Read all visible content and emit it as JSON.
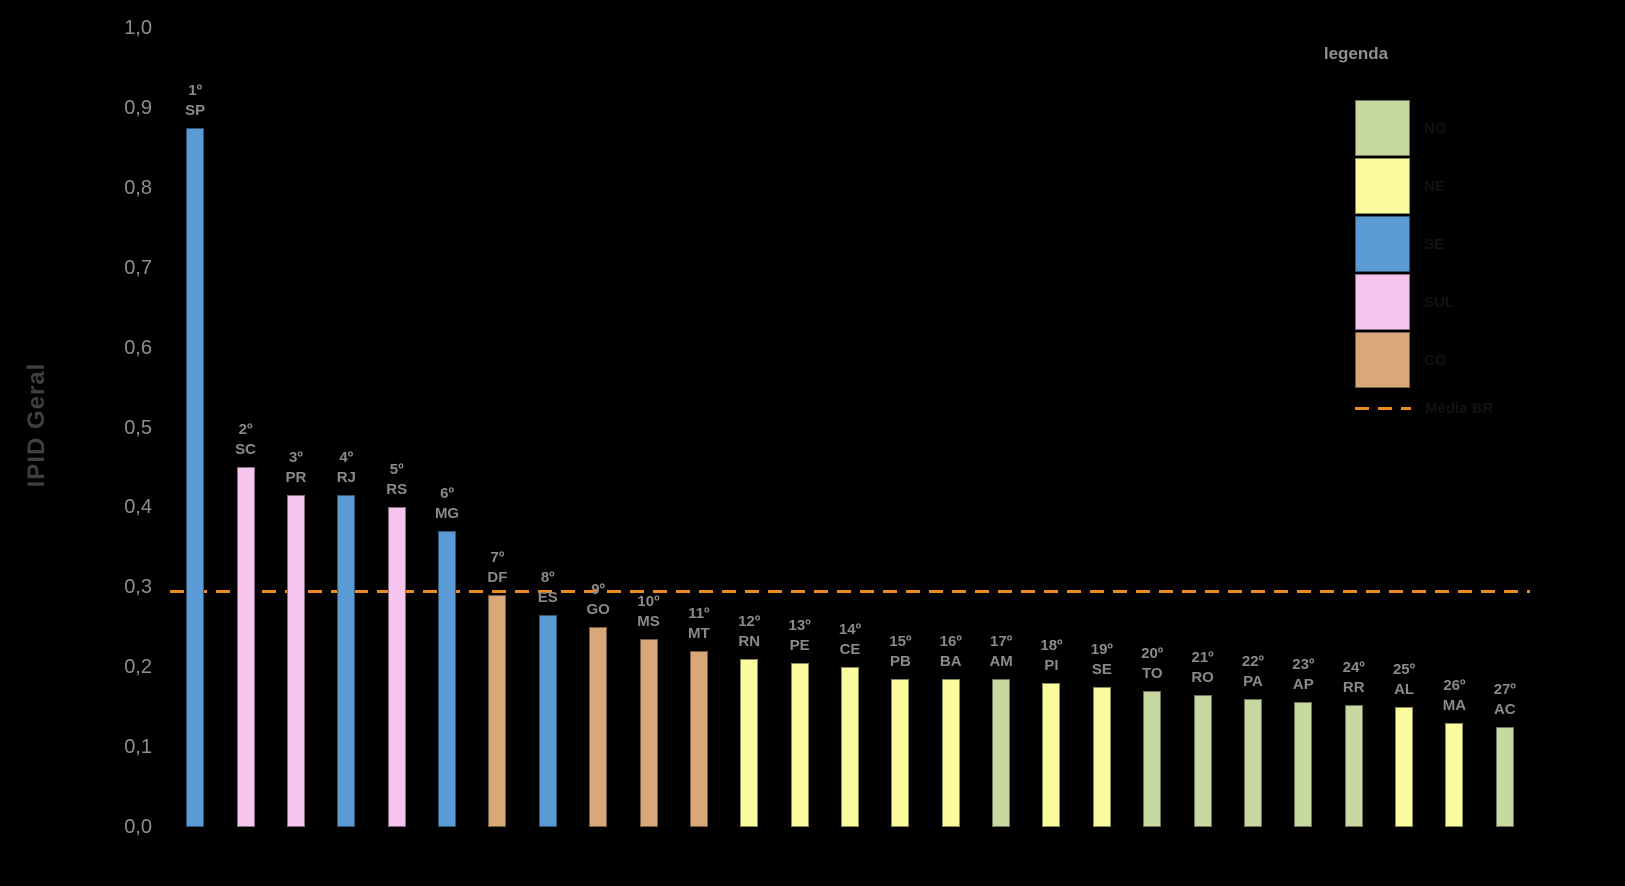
{
  "page": {
    "background": "#000000"
  },
  "y_axis": {
    "title": "IPID Geral",
    "ticks": [
      "1,0",
      "0,9",
      "0,8",
      "0,7",
      "0,6",
      "0,5",
      "0,4",
      "0,3",
      "0,2",
      "0,1",
      "0,0"
    ]
  },
  "legend": {
    "title": "legenda",
    "items": [
      {
        "label": "NO",
        "color": "#C7D8A0"
      },
      {
        "label": "NE",
        "color": "#FBFB9E"
      },
      {
        "label": "SE",
        "color": "#5B9BD5"
      },
      {
        "label": "SUL",
        "color": "#F5C5ED"
      },
      {
        "label": "CO",
        "color": "#D8A878"
      }
    ],
    "line_item": {
      "label": "Média BR",
      "color": "#ED8B1E"
    }
  },
  "chart_data": {
    "type": "bar",
    "title": "",
    "xlabel": "",
    "ylabel": "IPID Geral",
    "ylim": [
      0,
      1
    ],
    "grid": false,
    "legend_position": "top-right",
    "region_colors": {
      "NO": "#C7D8A0",
      "NE": "#FBFB9E",
      "SE": "#5B9BD5",
      "SUL": "#F5C5ED",
      "CO": "#D8A878"
    },
    "reference_line": {
      "label": "Média BR",
      "value": 0.295,
      "color": "#ED8B1E",
      "style": "dashed"
    },
    "bars": [
      {
        "rank": "1º",
        "state": "SP",
        "region": "SE",
        "value": 0.875
      },
      {
        "rank": "2º",
        "state": "SC",
        "region": "SUL",
        "value": 0.45
      },
      {
        "rank": "3º",
        "state": "PR",
        "region": "SUL",
        "value": 0.415
      },
      {
        "rank": "4º",
        "state": "RJ",
        "region": "SE",
        "value": 0.415
      },
      {
        "rank": "5º",
        "state": "RS",
        "region": "SUL",
        "value": 0.4
      },
      {
        "rank": "6º",
        "state": "MG",
        "region": "SE",
        "value": 0.37
      },
      {
        "rank": "7º",
        "state": "DF",
        "region": "CO",
        "value": 0.29
      },
      {
        "rank": "8º",
        "state": "ES",
        "region": "SE",
        "value": 0.265
      },
      {
        "rank": "9º",
        "state": "GO",
        "region": "CO",
        "value": 0.25
      },
      {
        "rank": "10º",
        "state": "MS",
        "region": "CO",
        "value": 0.235
      },
      {
        "rank": "11º",
        "state": "MT",
        "region": "CO",
        "value": 0.22
      },
      {
        "rank": "12º",
        "state": "RN",
        "region": "NE",
        "value": 0.21
      },
      {
        "rank": "13º",
        "state": "PE",
        "region": "NE",
        "value": 0.205
      },
      {
        "rank": "14º",
        "state": "CE",
        "region": "NE",
        "value": 0.2
      },
      {
        "rank": "15º",
        "state": "PB",
        "region": "NE",
        "value": 0.185
      },
      {
        "rank": "16º",
        "state": "BA",
        "region": "NE",
        "value": 0.185
      },
      {
        "rank": "17º",
        "state": "AM",
        "region": "NO",
        "value": 0.185
      },
      {
        "rank": "18º",
        "state": "PI",
        "region": "NE",
        "value": 0.18
      },
      {
        "rank": "19º",
        "state": "SE",
        "region": "NE",
        "value": 0.175
      },
      {
        "rank": "20º",
        "state": "TO",
        "region": "NO",
        "value": 0.17
      },
      {
        "rank": "21º",
        "state": "RO",
        "region": "NO",
        "value": 0.165
      },
      {
        "rank": "22º",
        "state": "PA",
        "region": "NO",
        "value": 0.16
      },
      {
        "rank": "23º",
        "state": "AP",
        "region": "NO",
        "value": 0.156
      },
      {
        "rank": "24º",
        "state": "RR",
        "region": "NO",
        "value": 0.153
      },
      {
        "rank": "25º",
        "state": "AL",
        "region": "NE",
        "value": 0.15
      },
      {
        "rank": "26º",
        "state": "MA",
        "region": "NE",
        "value": 0.13
      },
      {
        "rank": "27º",
        "state": "AC",
        "region": "NO",
        "value": 0.125
      }
    ]
  }
}
